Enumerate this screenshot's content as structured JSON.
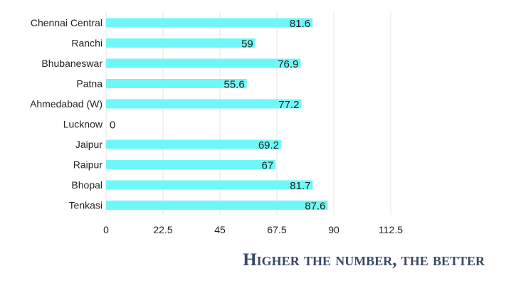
{
  "chart_data": {
    "type": "bar",
    "orientation": "horizontal",
    "categories": [
      "Chennai Central",
      "Ranchi",
      "Bhubaneswar",
      "Patna",
      "Ahmedabad (W)",
      "Lucknow",
      "Jaipur",
      "Raipur",
      "Bhopal",
      "Tenkasi"
    ],
    "values": [
      81.6,
      59,
      76.9,
      55.6,
      77.2,
      0,
      69.2,
      67,
      81.7,
      87.6
    ],
    "value_labels": [
      "81.6",
      "59",
      "76.9",
      "55.6",
      "77.2",
      "0",
      "69.2",
      "67",
      "81.7",
      "87.6"
    ],
    "x_ticks": [
      "0",
      "22.5",
      "45",
      "67.5",
      "90",
      "112.5"
    ],
    "xlim": [
      0,
      112.5
    ],
    "grid": true,
    "bar_color": "#6ff7f7",
    "grid_color": "#e6e6e6"
  },
  "footer": {
    "text": "Higher the number, the better",
    "color": "#3b4a63"
  }
}
